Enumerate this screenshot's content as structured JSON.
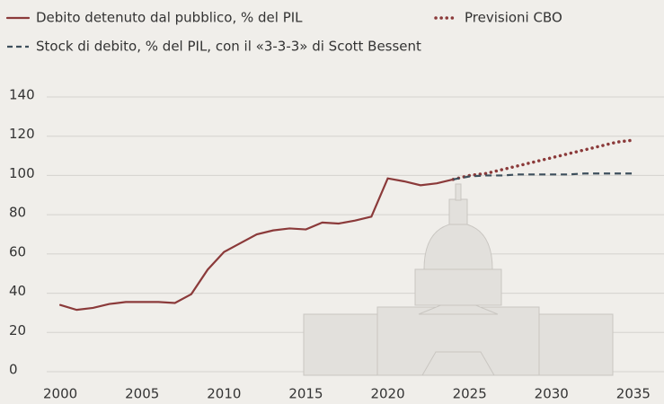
{
  "chart_data": {
    "type": "line",
    "x": [
      2000,
      2001,
      2002,
      2003,
      2004,
      2005,
      2006,
      2007,
      2008,
      2009,
      2010,
      2011,
      2012,
      2013,
      2014,
      2015,
      2016,
      2017,
      2018,
      2019,
      2020,
      2021,
      2022,
      2023,
      2024,
      2025,
      2026,
      2027,
      2028,
      2029,
      2030,
      2031,
      2032,
      2033,
      2034,
      2035
    ],
    "series": [
      {
        "name": "Debito detenuto dal pubblico, % del PIL",
        "color": "#8b3a3a",
        "style": "solid",
        "values": [
          34,
          31.5,
          32.5,
          34.5,
          35.5,
          35.5,
          35.5,
          35,
          39.5,
          52,
          61,
          65.5,
          70,
          72,
          73,
          72.5,
          76,
          75.5,
          77,
          79,
          98.5,
          97,
          95,
          96,
          98,
          null,
          null,
          null,
          null,
          null,
          null,
          null,
          null,
          null,
          null,
          null
        ]
      },
      {
        "name": "Previsioni CBO",
        "color": "#8b3a3a",
        "style": "dotted",
        "values": [
          null,
          null,
          null,
          null,
          null,
          null,
          null,
          null,
          null,
          null,
          null,
          null,
          null,
          null,
          null,
          null,
          null,
          null,
          null,
          null,
          null,
          null,
          null,
          null,
          98,
          100,
          101,
          103,
          105,
          107,
          109,
          111,
          113,
          115,
          117,
          118
        ]
      },
      {
        "name": "Stock di debito, % del PIL, con il «3-3-3» di Scott Bessent",
        "color": "#3d4f5c",
        "style": "dashed",
        "values": [
          null,
          null,
          null,
          null,
          null,
          null,
          null,
          null,
          null,
          null,
          null,
          null,
          null,
          null,
          null,
          null,
          null,
          null,
          null,
          null,
          null,
          null,
          null,
          null,
          98,
          99.5,
          100,
          100,
          100.5,
          100.5,
          100.5,
          100.5,
          101,
          101,
          101,
          101
        ]
      }
    ],
    "xlim": [
      1999.5,
      2035.5
    ],
    "xticks": [
      2000,
      2005,
      2010,
      2015,
      2020,
      2025,
      2030,
      2035
    ],
    "ylim": [
      0,
      140
    ],
    "yticks": [
      0,
      20,
      40,
      60,
      80,
      100,
      120,
      140
    ],
    "grid": true
  }
}
